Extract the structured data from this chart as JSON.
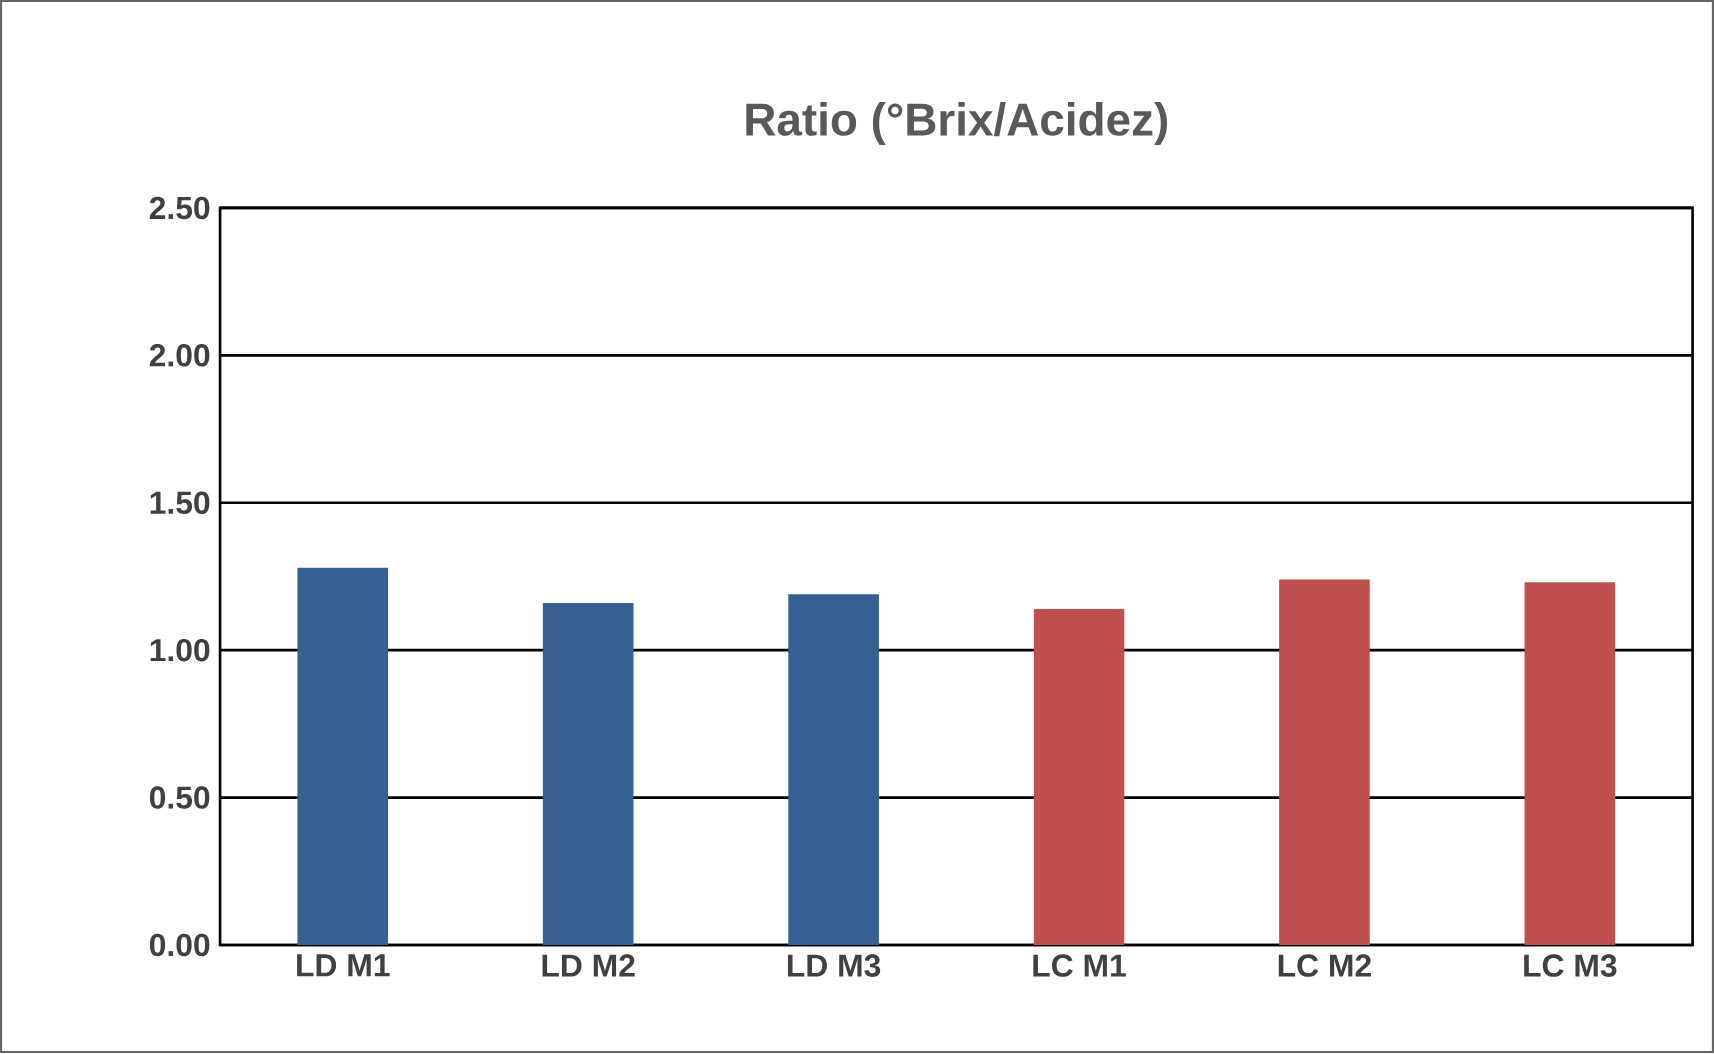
{
  "chart_data": {
    "type": "bar",
    "title": "Ratio (°Brix/Acidez)",
    "categories": [
      "LD M1",
      "LD M2",
      "LD M3",
      "LC M1",
      "LC M2",
      "LC M3"
    ],
    "values": [
      1.28,
      1.16,
      1.19,
      1.14,
      1.24,
      1.23
    ],
    "colors": [
      "#366092",
      "#366092",
      "#366092",
      "#c0504d",
      "#c0504d",
      "#c0504d"
    ],
    "ylim": [
      0,
      2.5
    ],
    "yticks": [
      {
        "value": 0,
        "label": "0.00"
      },
      {
        "value": 0.5,
        "label": "0.50"
      },
      {
        "value": 1,
        "label": "1.00"
      },
      {
        "value": 1.5,
        "label": "1.50"
      },
      {
        "value": 2,
        "label": "2.00"
      },
      {
        "value": 2.5,
        "label": "2.50"
      }
    ],
    "grid": "y"
  }
}
